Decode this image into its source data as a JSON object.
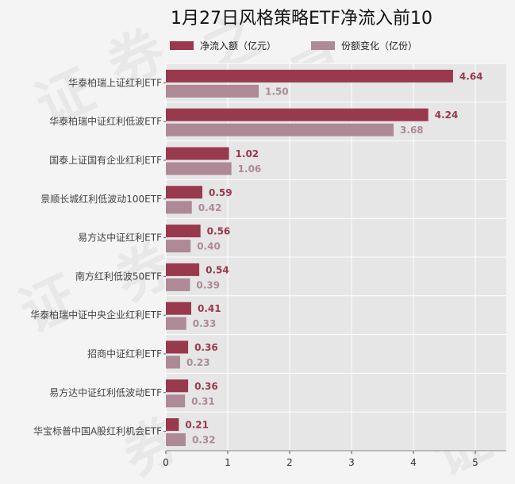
{
  "chart_data": {
    "type": "bar",
    "orientation": "horizontal",
    "title": "1月27日风格策略ETF净流入前10",
    "categories": [
      "华泰柏瑞上证红利ETF",
      "华泰柏瑞中证红利低波ETF",
      "国泰上证国有企业红利ETF",
      "景顺长城红利低波动100ETF",
      "易方达中证红利ETF",
      "南方红利低波50ETF",
      "华泰柏瑞中证中央企业红利ETF",
      "招商中证红利ETF",
      "易方达中证红利低波动ETF",
      "华宝标普中国A股红利机会ETF"
    ],
    "series": [
      {
        "name": "净流入额（亿元）",
        "color": "#99394d",
        "label_color": "#99394d",
        "values": [
          4.64,
          4.24,
          1.02,
          0.59,
          0.56,
          0.54,
          0.41,
          0.36,
          0.36,
          0.21
        ]
      },
      {
        "name": "份额变化（亿份）",
        "color": "#ad8a95",
        "label_color": "#ad8a95",
        "values": [
          1.5,
          3.68,
          1.06,
          0.42,
          0.4,
          0.39,
          0.33,
          0.23,
          0.31,
          0.32
        ]
      }
    ],
    "xlim": [
      0,
      5.5
    ],
    "xticks": [
      0,
      1,
      2,
      3,
      4,
      5
    ],
    "grid": true,
    "legend_position": "top",
    "plot_background": "#e6e6e6"
  },
  "watermark_text": [
    "证",
    "券",
    "之",
    "星"
  ]
}
